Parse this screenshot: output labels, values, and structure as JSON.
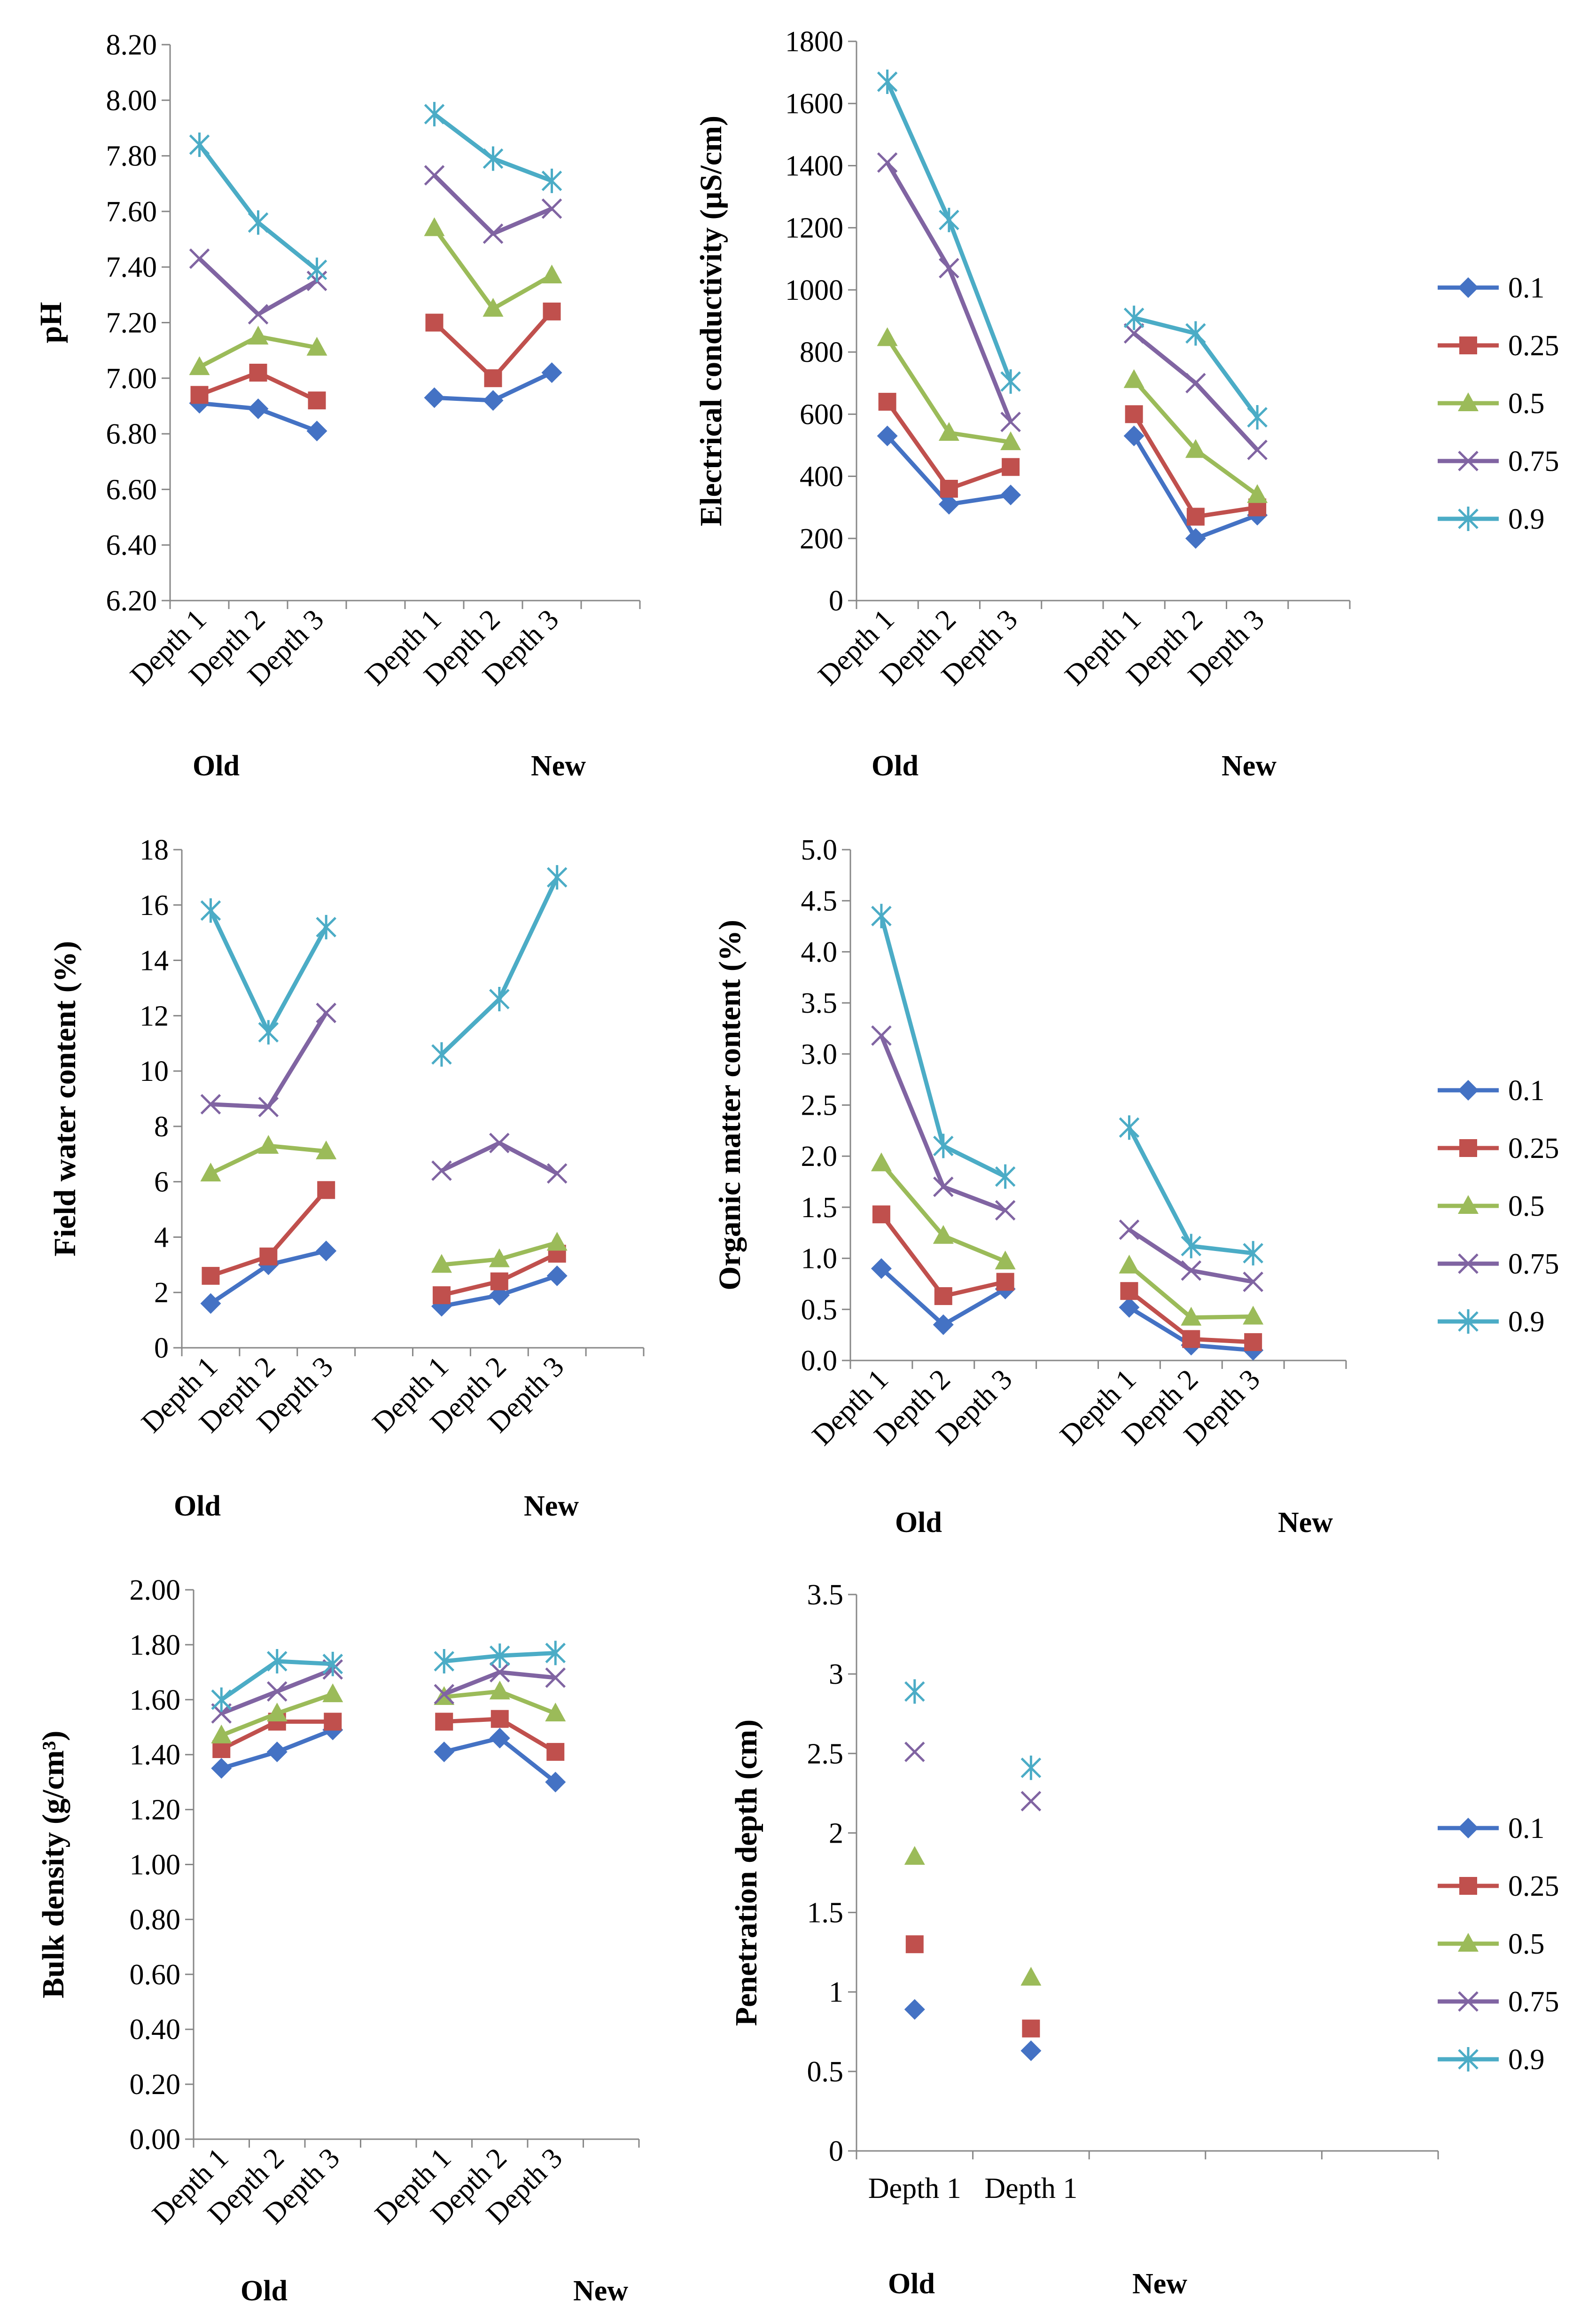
{
  "colors": {
    "0.1": "#4472C4",
    "0.25": "#C0504D",
    "0.5": "#9BBB59",
    "0.75": "#8064A2",
    "0.9": "#4BACC6"
  },
  "markers": {
    "0.1": "diamond",
    "0.25": "square",
    "0.5": "triangle",
    "0.75": "x",
    "0.9": "star"
  },
  "legend": {
    "entries": [
      "0.1",
      "0.25",
      "0.5",
      "0.75",
      "0.9"
    ]
  },
  "chart_data": [
    {
      "id": "ph",
      "type": "line",
      "ylabel": "pH",
      "ylim": [
        6.2,
        8.2
      ],
      "ystep": 0.2,
      "decimals": 2,
      "groups": [
        "Old",
        "New"
      ],
      "categories": [
        "Depth 1",
        "Depth 2",
        "Depth 3"
      ],
      "yticks": [
        "6.20",
        "6.40",
        "6.60",
        "6.80",
        "7.00",
        "7.20",
        "7.40",
        "7.60",
        "7.80",
        "8.00",
        "8.20"
      ],
      "series": [
        {
          "name": "0.1",
          "old": [
            6.91,
            6.89,
            6.81
          ],
          "new": [
            6.93,
            6.92,
            7.02
          ]
        },
        {
          "name": "0.25",
          "old": [
            6.94,
            7.02,
            6.92
          ],
          "new": [
            7.2,
            7.0,
            7.24
          ]
        },
        {
          "name": "0.5",
          "old": [
            7.04,
            7.15,
            7.11
          ],
          "new": [
            7.54,
            7.25,
            7.37
          ]
        },
        {
          "name": "0.75",
          "old": [
            7.43,
            7.23,
            7.35
          ],
          "new": [
            7.73,
            7.52,
            7.61
          ]
        },
        {
          "name": "0.9",
          "old": [
            7.84,
            7.56,
            7.39
          ],
          "new": [
            7.95,
            7.79,
            7.71
          ]
        }
      ]
    },
    {
      "id": "ec",
      "type": "line",
      "ylabel": "Electrical conductivity (µS/cm)",
      "ylim": [
        0,
        1800
      ],
      "ystep": 200,
      "decimals": 0,
      "groups": [
        "Old",
        "New"
      ],
      "categories": [
        "Depth 1",
        "Depth 2",
        "Depth 3"
      ],
      "yticks": [
        "0",
        "200",
        "400",
        "600",
        "800",
        "1000",
        "1200",
        "1400",
        "1600",
        "1800"
      ],
      "series": [
        {
          "name": "0.1",
          "old": [
            530,
            310,
            340
          ],
          "new": [
            530,
            200,
            275
          ]
        },
        {
          "name": "0.25",
          "old": [
            640,
            360,
            430
          ],
          "new": [
            600,
            270,
            300
          ]
        },
        {
          "name": "0.5",
          "old": [
            845,
            540,
            510
          ],
          "new": [
            710,
            485,
            340
          ]
        },
        {
          "name": "0.75",
          "old": [
            1410,
            1070,
            575
          ],
          "new": [
            860,
            700,
            485
          ]
        },
        {
          "name": "0.9",
          "old": [
            1670,
            1225,
            705
          ],
          "new": [
            910,
            860,
            590
          ]
        }
      ]
    },
    {
      "id": "fwc",
      "type": "line",
      "ylabel": "Field water content (%)",
      "ylim": [
        0,
        18
      ],
      "ystep": 2,
      "decimals": 0,
      "groups": [
        "Old",
        "New"
      ],
      "categories": [
        "Depth 1",
        "Depth 2",
        "Depth 3"
      ],
      "yticks": [
        "0",
        "2",
        "4",
        "6",
        "8",
        "10",
        "12",
        "14",
        "16",
        "18"
      ],
      "series": [
        {
          "name": "0.1",
          "old": [
            1.6,
            3.0,
            3.5
          ],
          "new": [
            1.5,
            1.9,
            2.6
          ]
        },
        {
          "name": "0.25",
          "old": [
            2.6,
            3.3,
            5.7
          ],
          "new": [
            1.9,
            2.4,
            3.4
          ]
        },
        {
          "name": "0.5",
          "old": [
            6.3,
            7.3,
            7.1
          ],
          "new": [
            3.0,
            3.2,
            3.8
          ]
        },
        {
          "name": "0.75",
          "old": [
            8.8,
            8.7,
            12.1
          ],
          "new": [
            6.4,
            7.4,
            6.3
          ]
        },
        {
          "name": "0.9",
          "old": [
            15.8,
            11.4,
            15.2
          ],
          "new": [
            10.6,
            12.6,
            17.0
          ]
        }
      ]
    },
    {
      "id": "om",
      "type": "line",
      "ylabel": "Organic matter content (%)",
      "ylim": [
        0,
        5
      ],
      "ystep": 0.5,
      "decimals": 1,
      "groups": [
        "Old",
        "New"
      ],
      "categories": [
        "Depth 1",
        "Depth 2",
        "Depth 3"
      ],
      "yticks": [
        "0.0",
        "0.5",
        "1.0",
        "1.5",
        "2.0",
        "2.5",
        "3.0",
        "3.5",
        "4.0",
        "4.5",
        "5.0"
      ],
      "series": [
        {
          "name": "0.1",
          "old": [
            0.9,
            0.35,
            0.7
          ],
          "new": [
            0.52,
            0.15,
            0.1
          ]
        },
        {
          "name": "0.25",
          "old": [
            1.43,
            0.63,
            0.77
          ],
          "new": [
            0.68,
            0.21,
            0.18
          ]
        },
        {
          "name": "0.5",
          "old": [
            1.93,
            1.22,
            0.97
          ],
          "new": [
            0.93,
            0.42,
            0.43
          ]
        },
        {
          "name": "0.75",
          "old": [
            3.18,
            1.7,
            1.47
          ],
          "new": [
            1.28,
            0.88,
            0.77
          ]
        },
        {
          "name": "0.9",
          "old": [
            4.35,
            2.1,
            1.8
          ],
          "new": [
            2.28,
            1.12,
            1.05
          ]
        }
      ]
    },
    {
      "id": "bd",
      "type": "line",
      "ylabel": "Bulk density (g/cm³)",
      "ylim": [
        0,
        2
      ],
      "ystep": 0.2,
      "decimals": 2,
      "groups": [
        "Old",
        "New"
      ],
      "categories": [
        "Depth 1",
        "Depth 2",
        "Depth 3"
      ],
      "yticks": [
        "0.00",
        "0.20",
        "0.40",
        "0.60",
        "0.80",
        "1.00",
        "1.20",
        "1.40",
        "1.60",
        "1.80",
        "2.00"
      ],
      "series": [
        {
          "name": "0.1",
          "old": [
            1.35,
            1.41,
            1.49
          ],
          "new": [
            1.41,
            1.46,
            1.3
          ]
        },
        {
          "name": "0.25",
          "old": [
            1.42,
            1.52,
            1.52
          ],
          "new": [
            1.52,
            1.53,
            1.41
          ]
        },
        {
          "name": "0.5",
          "old": [
            1.47,
            1.55,
            1.62
          ],
          "new": [
            1.61,
            1.63,
            1.55
          ]
        },
        {
          "name": "0.75",
          "old": [
            1.55,
            1.63,
            1.71
          ],
          "new": [
            1.62,
            1.7,
            1.68
          ]
        },
        {
          "name": "0.9",
          "old": [
            1.6,
            1.74,
            1.73
          ],
          "new": [
            1.74,
            1.76,
            1.77
          ]
        }
      ]
    },
    {
      "id": "pd",
      "type": "scatter",
      "ylabel": "Penetration depth (cm)",
      "ylim": [
        0,
        3.5
      ],
      "ystep": 0.5,
      "decimals": 1,
      "groups": [
        "Old",
        "New"
      ],
      "categories": [
        "Depth 1"
      ],
      "yticks": [
        "0",
        "0.5",
        "1",
        "1.5",
        "2",
        "2.5",
        "3",
        "3.5"
      ],
      "series": [
        {
          "name": "0.1",
          "old": [
            0.89
          ],
          "new": [
            0.63
          ]
        },
        {
          "name": "0.25",
          "old": [
            1.3
          ],
          "new": [
            0.77
          ]
        },
        {
          "name": "0.5",
          "old": [
            1.85
          ],
          "new": [
            1.09
          ]
        },
        {
          "name": "0.75",
          "old": [
            2.51
          ],
          "new": [
            2.2
          ]
        },
        {
          "name": "0.9",
          "old": [
            2.89
          ],
          "new": [
            2.41
          ]
        }
      ]
    }
  ]
}
